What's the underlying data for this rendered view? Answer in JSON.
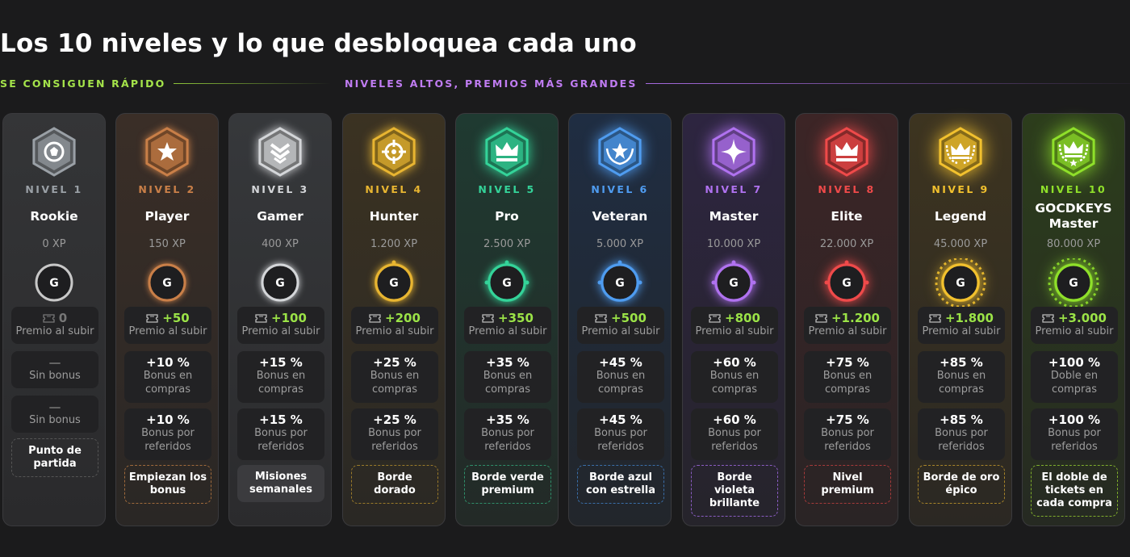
{
  "title": "Los 10 niveles y lo que desbloquea cada uno",
  "phases": {
    "early": "SE CONSIGUEN RÁPIDO",
    "late": "NIVELES ALTOS, PREMIOS MÁS GRANDES"
  },
  "colors": {
    "accent_green": "#9be347",
    "accent_purple": "#c07cf2"
  },
  "levels": [
    {
      "nivel": "NIVEL 1",
      "name": "Rookie",
      "xp": "0 XP",
      "ring_letter": "G",
      "reward": "0",
      "reward_label": "Premio al subir",
      "bonus_compras": "—",
      "bonus_compras_label": "Sin bonus",
      "bonus_ref": "—",
      "bonus_ref_label": "Sin bonus",
      "tag": "Punto de partida",
      "color": "#9aa0a6",
      "icon": "shield-star-icon"
    },
    {
      "nivel": "NIVEL 2",
      "name": "Player",
      "xp": "150 XP",
      "ring_letter": "G",
      "reward": "+50",
      "reward_label": "Premio al subir",
      "bonus_compras": "+10 %",
      "bonus_compras_label": "Bonus en compras",
      "bonus_ref": "+10 %",
      "bonus_ref_label": "Bonus por referidos",
      "tag": "Empiezan los bonus",
      "color": "#c97f48",
      "icon": "star-icon"
    },
    {
      "nivel": "NIVEL 3",
      "name": "Gamer",
      "xp": "400 XP",
      "ring_letter": "G",
      "reward": "+100",
      "reward_label": "Premio al subir",
      "bonus_compras": "+15 %",
      "bonus_compras_label": "Bonus en compras",
      "bonus_ref": "+15 %",
      "bonus_ref_label": "Bonus por referidos",
      "tag": "Misiones semanales",
      "color": "#d4d6d9",
      "icon": "chevron-rank-icon"
    },
    {
      "nivel": "NIVEL 4",
      "name": "Hunter",
      "xp": "1.200 XP",
      "ring_letter": "G",
      "reward": "+200",
      "reward_label": "Premio al subir",
      "bonus_compras": "+25 %",
      "bonus_compras_label": "Bonus en compras",
      "bonus_ref": "+25 %",
      "bonus_ref_label": "Bonus por referidos",
      "tag": "Borde dorado",
      "color": "#e8b531",
      "icon": "crosshair-icon"
    },
    {
      "nivel": "NIVEL 5",
      "name": "Pro",
      "xp": "2.500 XP",
      "ring_letter": "G",
      "reward": "+350",
      "reward_label": "Premio al subir",
      "bonus_compras": "+35 %",
      "bonus_compras_label": "Bonus en compras",
      "bonus_ref": "+35 %",
      "bonus_ref_label": "Bonus por referidos",
      "tag": "Borde verde premium",
      "color": "#34d399",
      "icon": "crown-icon"
    },
    {
      "nivel": "NIVEL 6",
      "name": "Veteran",
      "xp": "5.000 XP",
      "ring_letter": "G",
      "reward": "+500",
      "reward_label": "Premio al subir",
      "bonus_compras": "+45 %",
      "bonus_compras_label": "Bonus en compras",
      "bonus_ref": "+45 %",
      "bonus_ref_label": "Bonus por referidos",
      "tag": "Borde azul con estrella",
      "color": "#4f9cf0",
      "icon": "star-laurel-icon"
    },
    {
      "nivel": "NIVEL 7",
      "name": "Master",
      "xp": "10.000 XP",
      "ring_letter": "G",
      "reward": "+800",
      "reward_label": "Premio al subir",
      "bonus_compras": "+60 %",
      "bonus_compras_label": "Bonus en compras",
      "bonus_ref": "+60 %",
      "bonus_ref_label": "Bonus por referidos",
      "tag": "Borde violeta brillante",
      "color": "#b072f0",
      "icon": "sparkle-icon"
    },
    {
      "nivel": "NIVEL 8",
      "name": "Elite",
      "xp": "22.000 XP",
      "ring_letter": "G",
      "reward": "+1.200",
      "reward_label": "Premio al subir",
      "bonus_compras": "+75 %",
      "bonus_compras_label": "Bonus en compras",
      "bonus_ref": "+75 %",
      "bonus_ref_label": "Bonus por referidos",
      "tag": "Nivel premium",
      "color": "#ef4a4a",
      "icon": "crown-icon"
    },
    {
      "nivel": "NIVEL 9",
      "name": "Legend",
      "xp": "45.000 XP",
      "ring_letter": "G",
      "reward": "+1.800",
      "reward_label": "Premio al subir",
      "bonus_compras": "+85 %",
      "bonus_compras_label": "Bonus en compras",
      "bonus_ref": "+85 %",
      "bonus_ref_label": "Bonus por referidos",
      "tag": "Borde de oro épico",
      "color": "#f2c12e",
      "icon": "crown-laurel-icon"
    },
    {
      "nivel": "NIVEL 10",
      "name": "GOCDKEYS Master",
      "xp": "80.000 XP",
      "ring_letter": "G",
      "reward": "+3.000",
      "reward_label": "Premio al subir",
      "bonus_compras": "+100 %",
      "bonus_compras_label": "Doble en compras",
      "bonus_ref": "+100 %",
      "bonus_ref_label": "Bonus por referidos",
      "tag": "El doble de tickets en cada compra",
      "color": "#8fe02a",
      "icon": "crown-star-icon"
    }
  ]
}
